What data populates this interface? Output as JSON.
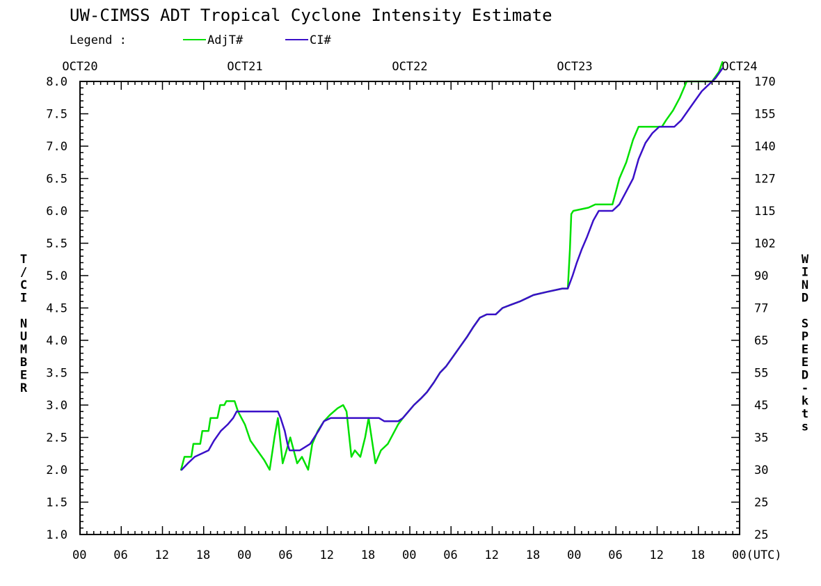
{
  "chart_data": {
    "type": "line",
    "title": "UW-CIMSS ADT Tropical Cyclone Intensity Estimate",
    "legend_label": "Legend :",
    "legend_placement": "top-left",
    "ylabel": "T/CI NUMBER",
    "y2label": "WIND SPEED-kts",
    "xlim": [
      0,
      96
    ],
    "ylim": [
      1.0,
      8.0
    ],
    "y_ticks": [
      "8.0",
      "7.5",
      "7.0",
      "6.5",
      "6.0",
      "5.5",
      "5.0",
      "4.5",
      "4.0",
      "3.5",
      "3.0",
      "2.5",
      "2.0",
      "1.5",
      "1.0"
    ],
    "y2_ticks": [
      "170",
      "155",
      "140",
      "127",
      "115",
      "102",
      "90",
      "77",
      "65",
      "55",
      "45",
      "35",
      "30",
      "25",
      "25"
    ],
    "x_ticks": [
      "00",
      "06",
      "12",
      "18",
      "00",
      "06",
      "12",
      "18",
      "00",
      "06",
      "12",
      "18",
      "00",
      "06",
      "12",
      "18",
      "00(UTC)"
    ],
    "date_labels": [
      "OCT20",
      "OCT21",
      "OCT22",
      "OCT23",
      "OCT24"
    ],
    "series": [
      {
        "name": "AdjT#",
        "color": "#00e000",
        "points": [
          [
            14.7,
            2.0
          ],
          [
            15.2,
            2.2
          ],
          [
            16.2,
            2.2
          ],
          [
            16.5,
            2.4
          ],
          [
            17.5,
            2.4
          ],
          [
            17.8,
            2.6
          ],
          [
            18.7,
            2.6
          ],
          [
            19.0,
            2.8
          ],
          [
            20.0,
            2.8
          ],
          [
            20.4,
            3.0
          ],
          [
            21.0,
            3.0
          ],
          [
            21.3,
            3.06
          ],
          [
            22.5,
            3.06
          ],
          [
            23.0,
            2.9
          ],
          [
            24.0,
            2.7
          ],
          [
            24.8,
            2.45
          ],
          [
            25.8,
            2.3
          ],
          [
            26.8,
            2.15
          ],
          [
            27.6,
            2.0
          ],
          [
            28.3,
            2.5
          ],
          [
            28.8,
            2.8
          ],
          [
            29.5,
            2.1
          ],
          [
            30.6,
            2.5
          ],
          [
            31.6,
            2.1
          ],
          [
            32.3,
            2.2
          ],
          [
            33.2,
            2.0
          ],
          [
            33.8,
            2.4
          ],
          [
            34.6,
            2.6
          ],
          [
            35.5,
            2.75
          ],
          [
            36.4,
            2.85
          ],
          [
            37.5,
            2.95
          ],
          [
            38.3,
            3.0
          ],
          [
            38.8,
            2.9
          ],
          [
            39.5,
            2.2
          ],
          [
            40.0,
            2.3
          ],
          [
            40.8,
            2.2
          ],
          [
            41.5,
            2.5
          ],
          [
            42.0,
            2.8
          ],
          [
            43.0,
            2.1
          ],
          [
            43.8,
            2.3
          ],
          [
            44.8,
            2.4
          ],
          [
            45.8,
            2.6
          ],
          [
            46.3,
            2.7
          ],
          [
            47.0,
            2.8
          ],
          [
            47.8,
            2.9
          ],
          [
            48.6,
            3.0
          ],
          [
            49.6,
            3.1
          ],
          [
            50.5,
            3.2
          ],
          [
            51.5,
            3.35
          ],
          [
            52.4,
            3.5
          ],
          [
            53.3,
            3.6
          ],
          [
            54.3,
            3.75
          ],
          [
            55.3,
            3.9
          ],
          [
            56.3,
            4.05
          ],
          [
            57.2,
            4.2
          ],
          [
            58.2,
            4.35
          ],
          [
            59.2,
            4.4
          ],
          [
            60.5,
            4.4
          ],
          [
            61.5,
            4.5
          ],
          [
            62.7,
            4.55
          ],
          [
            64.0,
            4.6
          ],
          [
            66.0,
            4.7
          ],
          [
            68.0,
            4.75
          ],
          [
            70.2,
            4.8
          ],
          [
            71.0,
            4.8
          ],
          [
            71.3,
            5.4
          ],
          [
            71.5,
            5.95
          ],
          [
            71.8,
            6.0
          ],
          [
            74.0,
            6.05
          ],
          [
            75.0,
            6.1
          ],
          [
            77.5,
            6.1
          ],
          [
            78.0,
            6.3
          ],
          [
            78.5,
            6.5
          ],
          [
            79.5,
            6.75
          ],
          [
            80.5,
            7.1
          ],
          [
            81.3,
            7.3
          ],
          [
            84.7,
            7.3
          ],
          [
            85.3,
            7.4
          ],
          [
            86.3,
            7.55
          ],
          [
            87.3,
            7.75
          ],
          [
            88.3,
            8.0
          ],
          [
            92.0,
            8.0
          ],
          [
            93.0,
            8.15
          ],
          [
            93.5,
            8.3
          ]
        ]
      },
      {
        "name": "CI#",
        "color": "#3a10c8",
        "points": [
          [
            14.8,
            2.0
          ],
          [
            15.7,
            2.1
          ],
          [
            16.7,
            2.2
          ],
          [
            17.7,
            2.25
          ],
          [
            18.7,
            2.3
          ],
          [
            19.5,
            2.45
          ],
          [
            20.5,
            2.6
          ],
          [
            21.5,
            2.7
          ],
          [
            22.3,
            2.8
          ],
          [
            22.8,
            2.9
          ],
          [
            28.8,
            2.9
          ],
          [
            29.2,
            2.8
          ],
          [
            29.8,
            2.6
          ],
          [
            30.2,
            2.4
          ],
          [
            30.5,
            2.3
          ],
          [
            32.0,
            2.3
          ],
          [
            33.5,
            2.4
          ],
          [
            34.7,
            2.6
          ],
          [
            35.5,
            2.75
          ],
          [
            36.5,
            2.8
          ],
          [
            43.5,
            2.8
          ],
          [
            44.3,
            2.75
          ],
          [
            46.3,
            2.75
          ],
          [
            47.0,
            2.8
          ],
          [
            47.8,
            2.9
          ],
          [
            48.6,
            3.0
          ],
          [
            49.6,
            3.1
          ],
          [
            50.5,
            3.2
          ],
          [
            51.5,
            3.35
          ],
          [
            52.4,
            3.5
          ],
          [
            53.3,
            3.6
          ],
          [
            54.3,
            3.75
          ],
          [
            55.3,
            3.9
          ],
          [
            56.3,
            4.05
          ],
          [
            57.2,
            4.2
          ],
          [
            58.2,
            4.35
          ],
          [
            59.2,
            4.4
          ],
          [
            60.5,
            4.4
          ],
          [
            61.5,
            4.5
          ],
          [
            62.7,
            4.55
          ],
          [
            64.0,
            4.6
          ],
          [
            66.0,
            4.7
          ],
          [
            68.0,
            4.75
          ],
          [
            70.2,
            4.8
          ],
          [
            71.0,
            4.8
          ],
          [
            71.7,
            5.0
          ],
          [
            72.3,
            5.2
          ],
          [
            73.0,
            5.4
          ],
          [
            73.8,
            5.6
          ],
          [
            74.7,
            5.85
          ],
          [
            75.5,
            6.0
          ],
          [
            77.5,
            6.0
          ],
          [
            78.5,
            6.1
          ],
          [
            79.5,
            6.3
          ],
          [
            80.5,
            6.5
          ],
          [
            81.3,
            6.8
          ],
          [
            82.3,
            7.05
          ],
          [
            83.3,
            7.2
          ],
          [
            84.3,
            7.3
          ],
          [
            86.5,
            7.3
          ],
          [
            87.5,
            7.4
          ],
          [
            88.5,
            7.55
          ],
          [
            89.5,
            7.7
          ],
          [
            90.5,
            7.85
          ],
          [
            91.5,
            7.95
          ],
          [
            92.5,
            8.05
          ],
          [
            93.5,
            8.2
          ]
        ]
      }
    ]
  }
}
